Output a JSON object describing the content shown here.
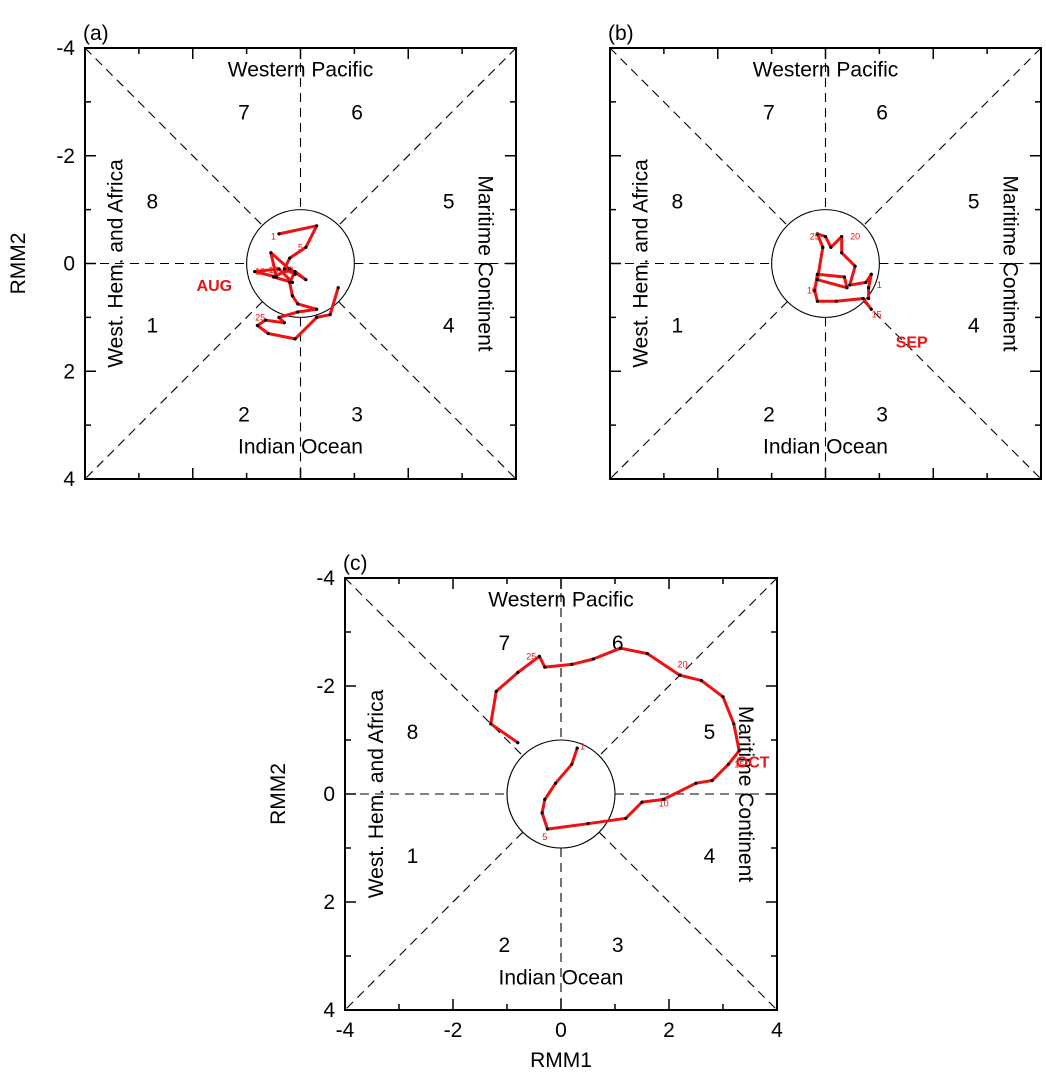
{
  "chart_data": [
    {
      "type": "line",
      "panel_label": "(a)",
      "xlabel": "",
      "ylabel": "RMM2",
      "xlim": [
        -4,
        4
      ],
      "ylim": [
        -4,
        4
      ],
      "xticks": [],
      "yticks": [
        "-4",
        "-2",
        "0",
        "2",
        "4"
      ],
      "region_labels": {
        "top": "Western Pacific",
        "bottom": "Indian Ocean",
        "left": "West. Hem. and Africa",
        "right": "Maritime Continent"
      },
      "phases": [
        "1",
        "2",
        "3",
        "4",
        "5",
        "6",
        "7",
        "8"
      ],
      "month_label": {
        "text": "AUG",
        "x": -1.6,
        "y": -0.4
      },
      "day_labels": [
        {
          "text": "1",
          "x": -0.5,
          "y": 0.5
        },
        {
          "text": "5",
          "x": 0.0,
          "y": 0.3
        },
        {
          "text": "10",
          "x": -0.75,
          "y": -0.15
        },
        {
          "text": "15",
          "x": -0.5,
          "y": -0.12
        },
        {
          "text": "20",
          "x": -0.22,
          "y": -0.12
        },
        {
          "text": "25",
          "x": -0.75,
          "y": -1.0
        }
      ],
      "color": "#ee1111",
      "x": [
        -0.4,
        0.3,
        0.1,
        -0.2,
        -0.3,
        -0.1,
        -0.55,
        -0.45,
        -0.85,
        -0.4,
        -0.15,
        -0.5,
        -0.2,
        0.1,
        -0.1,
        -0.2,
        -0.15,
        -0.05,
        0.3,
        -0.05,
        -0.4,
        -0.3,
        -0.65,
        -0.8,
        -0.6,
        -0.1,
        0.3,
        0.55,
        0.7
      ],
      "y": [
        0.55,
        0.7,
        0.3,
        0.1,
        -0.1,
        -0.2,
        0.2,
        -0.25,
        -0.15,
        -0.1,
        -0.35,
        -0.25,
        -0.1,
        -0.3,
        -0.15,
        -0.35,
        -0.6,
        -0.75,
        -0.85,
        -0.9,
        -1.0,
        -1.1,
        -1.05,
        -1.15,
        -1.3,
        -1.4,
        -1.0,
        -0.95,
        -0.45
      ]
    },
    {
      "type": "line",
      "panel_label": "(b)",
      "xlabel": "",
      "ylabel": "",
      "xlim": [
        -4,
        4
      ],
      "ylim": [
        -4,
        4
      ],
      "xticks": [],
      "yticks": [],
      "region_labels": {
        "top": "Western Pacific",
        "bottom": "Indian Ocean",
        "left": "West. Hem. and Africa",
        "right": "Maritime Continent"
      },
      "phases": [
        "1",
        "2",
        "3",
        "4",
        "5",
        "6",
        "7",
        "8"
      ],
      "month_label": {
        "text": "SEP",
        "x": 1.6,
        "y": -1.45
      },
      "day_labels": [
        {
          "text": "10",
          "x": -0.25,
          "y": -0.5
        },
        {
          "text": "15",
          "x": 0.95,
          "y": -0.95
        },
        {
          "text": "20",
          "x": 0.55,
          "y": 0.5
        },
        {
          "text": "25",
          "x": -0.2,
          "y": 0.5
        },
        {
          "text": "1",
          "x": 1.0,
          "y": -0.4
        }
      ],
      "color": "#ee1111",
      "x": [
        0.85,
        0.7,
        0.2,
        -0.15,
        -0.2,
        -0.15,
        0.35,
        0.4,
        -0.15,
        -0.05,
        -0.15,
        0.0,
        0.1,
        0.3,
        0.3,
        0.55,
        0.45,
        0.75,
        0.85,
        0.8,
        0.8
      ],
      "y": [
        -0.85,
        -0.65,
        -0.7,
        -0.7,
        -0.5,
        -0.2,
        -0.25,
        -0.45,
        -0.3,
        0.3,
        0.55,
        0.5,
        0.3,
        0.5,
        0.2,
        -0.05,
        -0.4,
        -0.35,
        -0.2,
        -0.45,
        -0.65
      ]
    },
    {
      "type": "line",
      "panel_label": "(c)",
      "xlabel": "RMM1",
      "ylabel": "RMM2",
      "xlim": [
        -4,
        4
      ],
      "ylim": [
        -4,
        4
      ],
      "xticks": [
        "-4",
        "-2",
        "0",
        "2",
        "4"
      ],
      "yticks": [
        "-4",
        "-2",
        "0",
        "2",
        "4"
      ],
      "region_labels": {
        "top": "Western Pacific",
        "bottom": "Indian Ocean",
        "left": "West. Hem. and Africa",
        "right": "Maritime Continent"
      },
      "phases": [
        "1",
        "2",
        "3",
        "4",
        "5",
        "6",
        "7",
        "8"
      ],
      "month_label": {
        "text": "OCT",
        "x": 3.55,
        "y": 0.6
      },
      "day_labels": [
        {
          "text": "1",
          "x": 0.4,
          "y": 0.88
        },
        {
          "text": "5",
          "x": -0.3,
          "y": -0.8
        },
        {
          "text": "10",
          "x": 1.9,
          "y": -0.18
        },
        {
          "text": "15",
          "x": 3.3,
          "y": 0.55
        },
        {
          "text": "20",
          "x": 2.25,
          "y": 2.4
        },
        {
          "text": "25",
          "x": -0.55,
          "y": 2.55
        }
      ],
      "color": "#ee1111",
      "x": [
        0.3,
        0.2,
        -0.1,
        -0.3,
        -0.35,
        -0.25,
        0.5,
        1.2,
        1.5,
        1.9,
        2.5,
        2.8,
        3.1,
        3.3,
        3.2,
        3.0,
        2.6,
        2.2,
        1.6,
        1.1,
        0.6,
        0.2,
        -0.3,
        -0.4,
        -0.8,
        -1.2,
        -1.3,
        -0.8
      ],
      "y": [
        0.85,
        0.55,
        0.2,
        -0.1,
        -0.35,
        -0.65,
        -0.55,
        -0.45,
        -0.15,
        -0.1,
        0.2,
        0.25,
        0.55,
        0.8,
        1.3,
        1.8,
        2.1,
        2.2,
        2.6,
        2.7,
        2.5,
        2.4,
        2.35,
        2.55,
        2.25,
        1.9,
        1.3,
        0.95
      ]
    }
  ]
}
